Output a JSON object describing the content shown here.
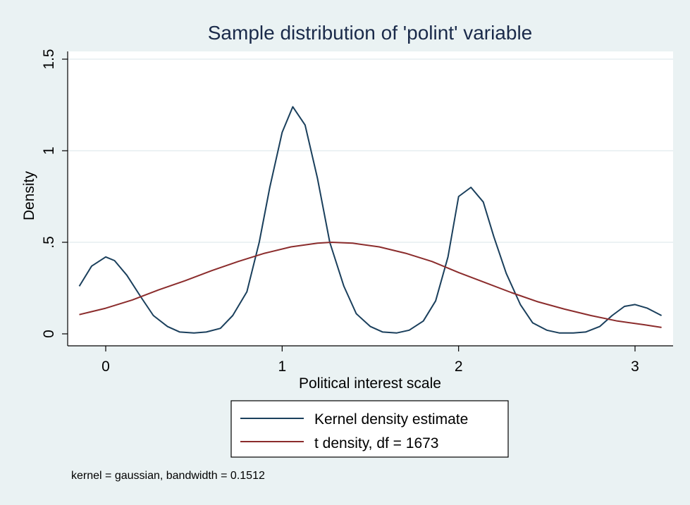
{
  "chart_data": {
    "type": "line",
    "title": "Sample distribution of 'polint' variable",
    "xlabel": "Political interest scale",
    "ylabel": "Density",
    "xlim": [
      -0.15,
      3.15
    ],
    "ylim": [
      0,
      1.5
    ],
    "x_ticks": [
      0,
      1,
      2,
      3
    ],
    "x_tick_labels": [
      "0",
      "1",
      "2",
      "3"
    ],
    "y_ticks": [
      0,
      0.5,
      1,
      1.5
    ],
    "y_tick_labels": [
      "0",
      ".5",
      "1",
      "1.5"
    ],
    "grid": "horizontal",
    "legend_position": "bottom",
    "note": "kernel = gaussian, bandwidth = 0.1512",
    "series": [
      {
        "name": "Kernel density estimate",
        "color": "#1a3f5c",
        "x": [
          -0.15,
          -0.08,
          0.0,
          0.05,
          0.12,
          0.2,
          0.27,
          0.35,
          0.42,
          0.5,
          0.57,
          0.65,
          0.72,
          0.8,
          0.87,
          0.93,
          1.0,
          1.06,
          1.13,
          1.2,
          1.27,
          1.35,
          1.42,
          1.5,
          1.57,
          1.65,
          1.72,
          1.8,
          1.87,
          1.94,
          2.0,
          2.07,
          2.14,
          2.2,
          2.27,
          2.35,
          2.42,
          2.5,
          2.57,
          2.65,
          2.72,
          2.8,
          2.87,
          2.94,
          3.0,
          3.07,
          3.15
        ],
        "y": [
          0.26,
          0.37,
          0.42,
          0.4,
          0.32,
          0.2,
          0.1,
          0.04,
          0.01,
          0.005,
          0.01,
          0.03,
          0.1,
          0.23,
          0.5,
          0.8,
          1.1,
          1.24,
          1.14,
          0.85,
          0.5,
          0.26,
          0.11,
          0.04,
          0.01,
          0.005,
          0.02,
          0.07,
          0.18,
          0.42,
          0.75,
          0.8,
          0.72,
          0.53,
          0.33,
          0.16,
          0.06,
          0.02,
          0.005,
          0.005,
          0.01,
          0.04,
          0.1,
          0.15,
          0.16,
          0.14,
          0.1
        ]
      },
      {
        "name": "t density, df = 1673",
        "color": "#8b2c2c",
        "x": [
          -0.15,
          0.0,
          0.15,
          0.3,
          0.45,
          0.6,
          0.75,
          0.9,
          1.05,
          1.2,
          1.28,
          1.4,
          1.55,
          1.7,
          1.85,
          2.0,
          2.15,
          2.3,
          2.45,
          2.6,
          2.75,
          2.9,
          3.05,
          3.15
        ],
        "y": [
          0.105,
          0.14,
          0.185,
          0.24,
          0.29,
          0.345,
          0.395,
          0.44,
          0.475,
          0.495,
          0.5,
          0.495,
          0.475,
          0.44,
          0.395,
          0.335,
          0.28,
          0.225,
          0.175,
          0.135,
          0.1,
          0.07,
          0.05,
          0.035
        ]
      }
    ]
  }
}
